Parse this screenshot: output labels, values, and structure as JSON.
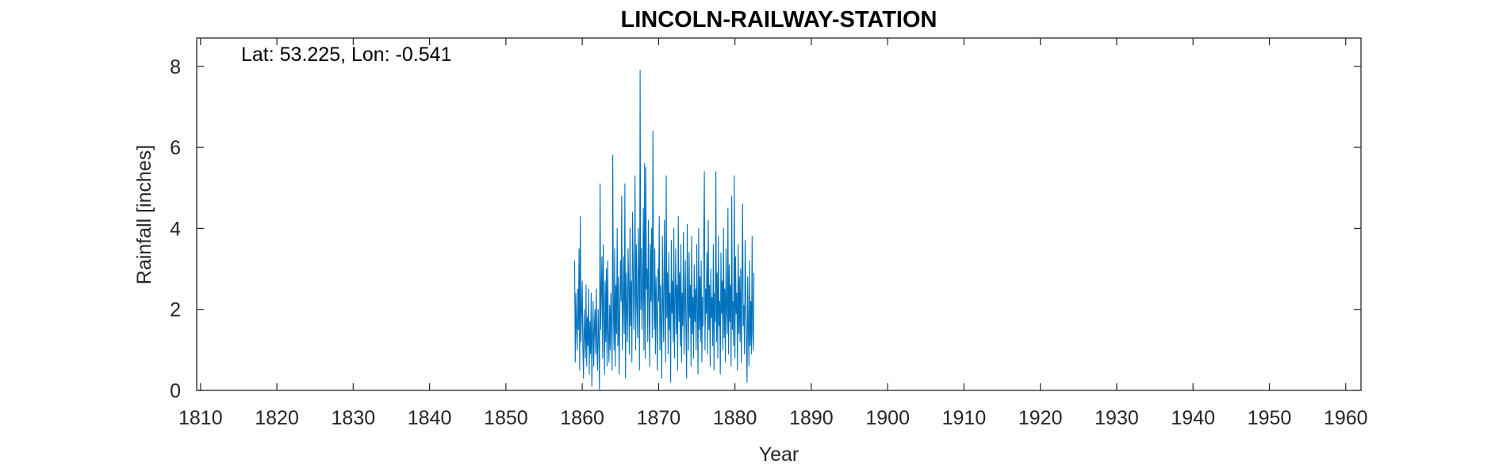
{
  "chart_data": {
    "type": "line",
    "title": "LINCOLN-RAILWAY-STATION",
    "annotation": "Lat: 53.225, Lon: -0.541",
    "xlabel": "Year",
    "ylabel": "Rainfall [inches]",
    "xlim": [
      1809.5,
      1962
    ],
    "ylim": [
      0,
      8.7
    ],
    "xticks": [
      1810,
      1820,
      1830,
      1840,
      1850,
      1860,
      1870,
      1880,
      1890,
      1900,
      1910,
      1920,
      1930,
      1940,
      1950,
      1960
    ],
    "yticks": [
      0,
      2,
      4,
      6,
      8
    ],
    "grid": false,
    "line_color": "#0072BD",
    "series": [
      {
        "start_year": 1859.0,
        "step_years": 0.08333,
        "values": [
          3.2,
          0.7,
          2.4,
          1.6,
          1.0,
          2.5,
          1.5,
          3.5,
          0.5,
          4.3,
          1.2,
          2.0,
          2.7,
          1.0,
          0.3,
          2.0,
          1.4,
          0.8,
          2.6,
          0.6,
          1.8,
          1.1,
          2.5,
          0.4,
          1.7,
          0.9,
          2.4,
          0.1,
          1.3,
          2.2,
          0.6,
          1.5,
          2.0,
          0.9,
          2.5,
          1.1,
          0.5,
          2.0,
          1.2,
          0.0,
          5.1,
          1.5,
          2.5,
          3.3,
          0.8,
          3.6,
          1.9,
          0.4,
          2.7,
          1.2,
          3.0,
          0.6,
          3.2,
          1.4,
          0.7,
          2.1,
          1.0,
          2.4,
          1.6,
          0.5,
          5.8,
          2.0,
          1.0,
          3.5,
          0.6,
          2.6,
          1.4,
          4.0,
          1.1,
          2.8,
          0.4,
          1.9,
          3.2,
          2.2,
          4.8,
          1.0,
          2.0,
          3.3,
          1.4,
          5.1,
          0.3,
          2.9,
          2.0,
          1.2,
          3.5,
          2.6,
          0.9,
          4.0,
          1.6,
          2.7,
          0.7,
          4.4,
          3.1,
          1.5,
          2.5,
          5.3,
          1.0,
          3.6,
          2.1,
          1.3,
          4.0,
          2.8,
          0.5,
          7.9,
          2.0,
          3.5,
          1.5,
          2.4,
          4.5,
          1.0,
          5.6,
          0.8,
          5.5,
          2.5,
          3.0,
          1.2,
          4.2,
          2.0,
          0.6,
          3.6,
          2.2,
          4.0,
          1.3,
          6.4,
          2.5,
          1.5,
          3.5,
          0.9,
          2.8,
          1.8,
          0.5,
          3.0,
          2.2,
          4.3,
          1.0,
          2.6,
          1.6,
          0.3,
          3.8,
          2.0,
          1.2,
          4.2,
          2.6,
          0.7,
          5.3,
          1.8,
          2.9,
          0.9,
          3.4,
          1.5,
          2.4,
          0.2,
          3.7,
          1.9,
          2.7,
          1.2,
          4.0,
          0.8,
          2.2,
          3.5,
          1.4,
          2.6,
          0.5,
          4.3,
          1.7,
          2.9,
          1.1,
          3.6,
          0.7,
          2.4,
          1.6,
          3.9,
          0.9,
          2.1,
          3.2,
          1.5,
          0.3,
          4.1,
          2.2,
          1.0,
          3.4,
          1.8,
          2.6,
          0.6,
          3.8,
          1.4,
          2.3,
          0.8,
          3.1,
          1.7,
          2.5,
          1.0,
          3.6,
          2.0,
          0.4,
          4.0,
          1.5,
          2.8,
          1.2,
          3.2,
          0.7,
          2.3,
          1.6,
          3.7,
          5.4,
          1.0,
          2.5,
          1.9,
          3.4,
          0.9,
          4.2,
          1.5,
          2.6,
          0.6,
          3.0,
          1.8,
          2.3,
          1.1,
          3.6,
          0.5,
          2.4,
          1.7,
          5.4,
          1.2,
          2.9,
          0.8,
          3.8,
          1.6,
          2.2,
          0.4,
          3.4,
          1.9,
          2.7,
          1.0,
          4.0,
          1.3,
          2.5,
          0.7,
          3.5,
          2.0,
          1.4,
          4.5,
          0.9,
          3.1,
          1.7,
          2.6,
          0.6,
          4.8,
          1.5,
          2.2,
          1.1,
          5.3,
          0.8,
          3.3,
          1.9,
          2.4,
          0.5,
          3.6,
          1.4,
          2.8,
          1.2,
          3.0,
          0.7,
          2.5,
          4.6,
          1.6,
          2.1,
          0.9,
          3.7,
          2.4,
          1.3,
          0.2,
          2.8,
          1.5,
          0.6,
          3.2,
          1.1,
          2.2,
          0.9,
          3.8,
          1.4,
          1.0,
          2.9
        ]
      }
    ]
  }
}
